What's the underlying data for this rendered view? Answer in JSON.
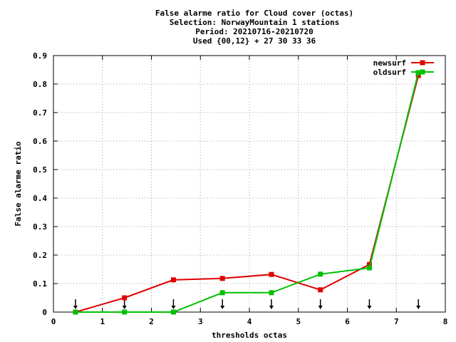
{
  "chart_data": {
    "type": "line",
    "title_lines": [
      "False alarme ratio  for Cloud cover (octas)",
      "Selection: NorwayMountain      1 stations",
      "Period: 20210716-20210720",
      "Used {00,12} + 27 30 33 36"
    ],
    "xlabel": "thresholds octas",
    "ylabel": "False alarme ratio",
    "xlim": [
      0,
      8
    ],
    "ylim": [
      0,
      0.9
    ],
    "xticks": [
      0,
      1,
      2,
      3,
      4,
      5,
      6,
      7,
      8
    ],
    "yticks": [
      0,
      0.1,
      0.2,
      0.3,
      0.4,
      0.5,
      0.6,
      0.7,
      0.8,
      0.9
    ],
    "xtick_labels": [
      "0",
      "1",
      "2",
      "3",
      "4",
      "5",
      "6",
      "7",
      "8"
    ],
    "ytick_labels": [
      "0",
      "0.1",
      "0.2",
      "0.3",
      "0.4",
      "0.5",
      "0.6",
      "0.7",
      "0.8",
      "0.9"
    ],
    "grid": true,
    "legend_position": "top-right",
    "series": [
      {
        "name": "newsurf",
        "color": "#e00000",
        "x": [
          0.45,
          1.45,
          2.45,
          3.45,
          4.45,
          5.45,
          6.45,
          7.45
        ],
        "y": [
          0.0,
          0.05,
          0.113,
          0.118,
          0.132,
          0.078,
          0.167,
          0.83
        ]
      },
      {
        "name": "oldsurf",
        "color": "#00c000",
        "x": [
          0.45,
          1.45,
          2.45,
          3.45,
          4.45,
          5.45,
          6.45,
          7.45
        ],
        "y": [
          0.0,
          0.0,
          0.0,
          0.068,
          0.068,
          0.133,
          0.155,
          0.84
        ]
      }
    ],
    "arrow_markers_x": [
      0.45,
      1.45,
      2.45,
      3.45,
      4.45,
      5.45,
      6.45,
      7.45
    ]
  }
}
